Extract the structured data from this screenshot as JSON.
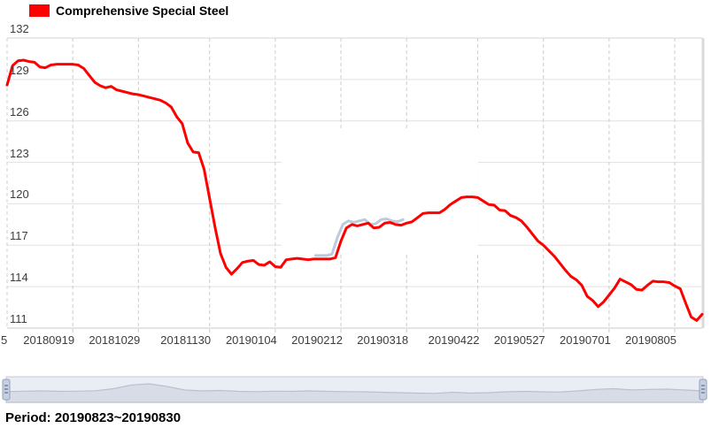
{
  "legend": {
    "label": "Comprehensive Special Steel",
    "swatch_color": "#ff0000"
  },
  "period": {
    "text": "Period: 20190823~20190830"
  },
  "chart_data": {
    "type": "line",
    "title": "Comprehensive Special Steel",
    "grid": true,
    "legend_position": "top-left",
    "ylim": [
      111,
      132
    ],
    "y_ticks": [
      132,
      129,
      126,
      123,
      120,
      117,
      114,
      111
    ],
    "x_tick_labels": [
      "20180919",
      "20181029",
      "20181130",
      "20190104",
      "20190212",
      "20190318",
      "20190422",
      "20190527",
      "20190701",
      "20190805"
    ],
    "x_tick_indices": [
      12,
      24,
      37,
      49,
      61,
      73,
      86,
      98,
      110,
      122
    ],
    "x_clipped_first_label": "5",
    "series": [
      {
        "name": "Comprehensive Special Steel",
        "color": "#ff0000",
        "values": [
          128.6,
          130.0,
          130.35,
          130.4,
          130.3,
          130.25,
          129.9,
          129.85,
          130.05,
          130.1,
          130.1,
          130.1,
          130.1,
          130.05,
          129.8,
          129.3,
          128.8,
          128.55,
          128.4,
          128.5,
          128.25,
          128.15,
          128.05,
          127.95,
          127.9,
          127.8,
          127.7,
          127.6,
          127.5,
          127.3,
          127.0,
          126.3,
          125.8,
          124.4,
          123.75,
          123.7,
          122.5,
          120.4,
          118.3,
          116.4,
          115.4,
          114.9,
          115.3,
          115.75,
          115.85,
          115.9,
          115.6,
          115.55,
          115.8,
          115.45,
          115.4,
          115.95,
          116.0,
          116.05,
          116.0,
          115.95,
          116.0,
          116.0,
          116.0,
          116.0,
          116.1,
          117.3,
          118.25,
          118.5,
          118.4,
          118.5,
          118.6,
          118.25,
          118.3,
          118.6,
          118.65,
          118.5,
          118.45,
          118.6,
          118.7,
          119.0,
          119.3,
          119.35,
          119.35,
          119.35,
          119.6,
          119.95,
          120.2,
          120.45,
          120.5,
          120.5,
          120.45,
          120.2,
          119.95,
          119.9,
          119.55,
          119.5,
          119.15,
          119.0,
          118.75,
          118.3,
          117.8,
          117.3,
          117.0,
          116.6,
          116.2,
          115.7,
          115.2,
          114.75,
          114.5,
          114.1,
          113.3,
          113.0,
          112.55,
          112.9,
          113.4,
          113.9,
          114.55,
          114.35,
          114.15,
          113.8,
          113.75,
          114.1,
          114.4,
          114.35,
          114.35,
          114.3,
          114.05,
          113.85,
          112.8,
          111.8,
          111.55,
          112.0
        ]
      }
    ],
    "navigator": {
      "bg": "#e9edf4",
      "fill": "#d7dce6",
      "line": "#b8c1d2",
      "values_pct": [
        45,
        47,
        48,
        46,
        47,
        49,
        58,
        75,
        80,
        68,
        52,
        48,
        50,
        46,
        45,
        47,
        46,
        48,
        46,
        45,
        44,
        42,
        40,
        38,
        37,
        42,
        38,
        40,
        44,
        46,
        44,
        43,
        48,
        55,
        58,
        53,
        55,
        56,
        52,
        48
      ]
    }
  }
}
